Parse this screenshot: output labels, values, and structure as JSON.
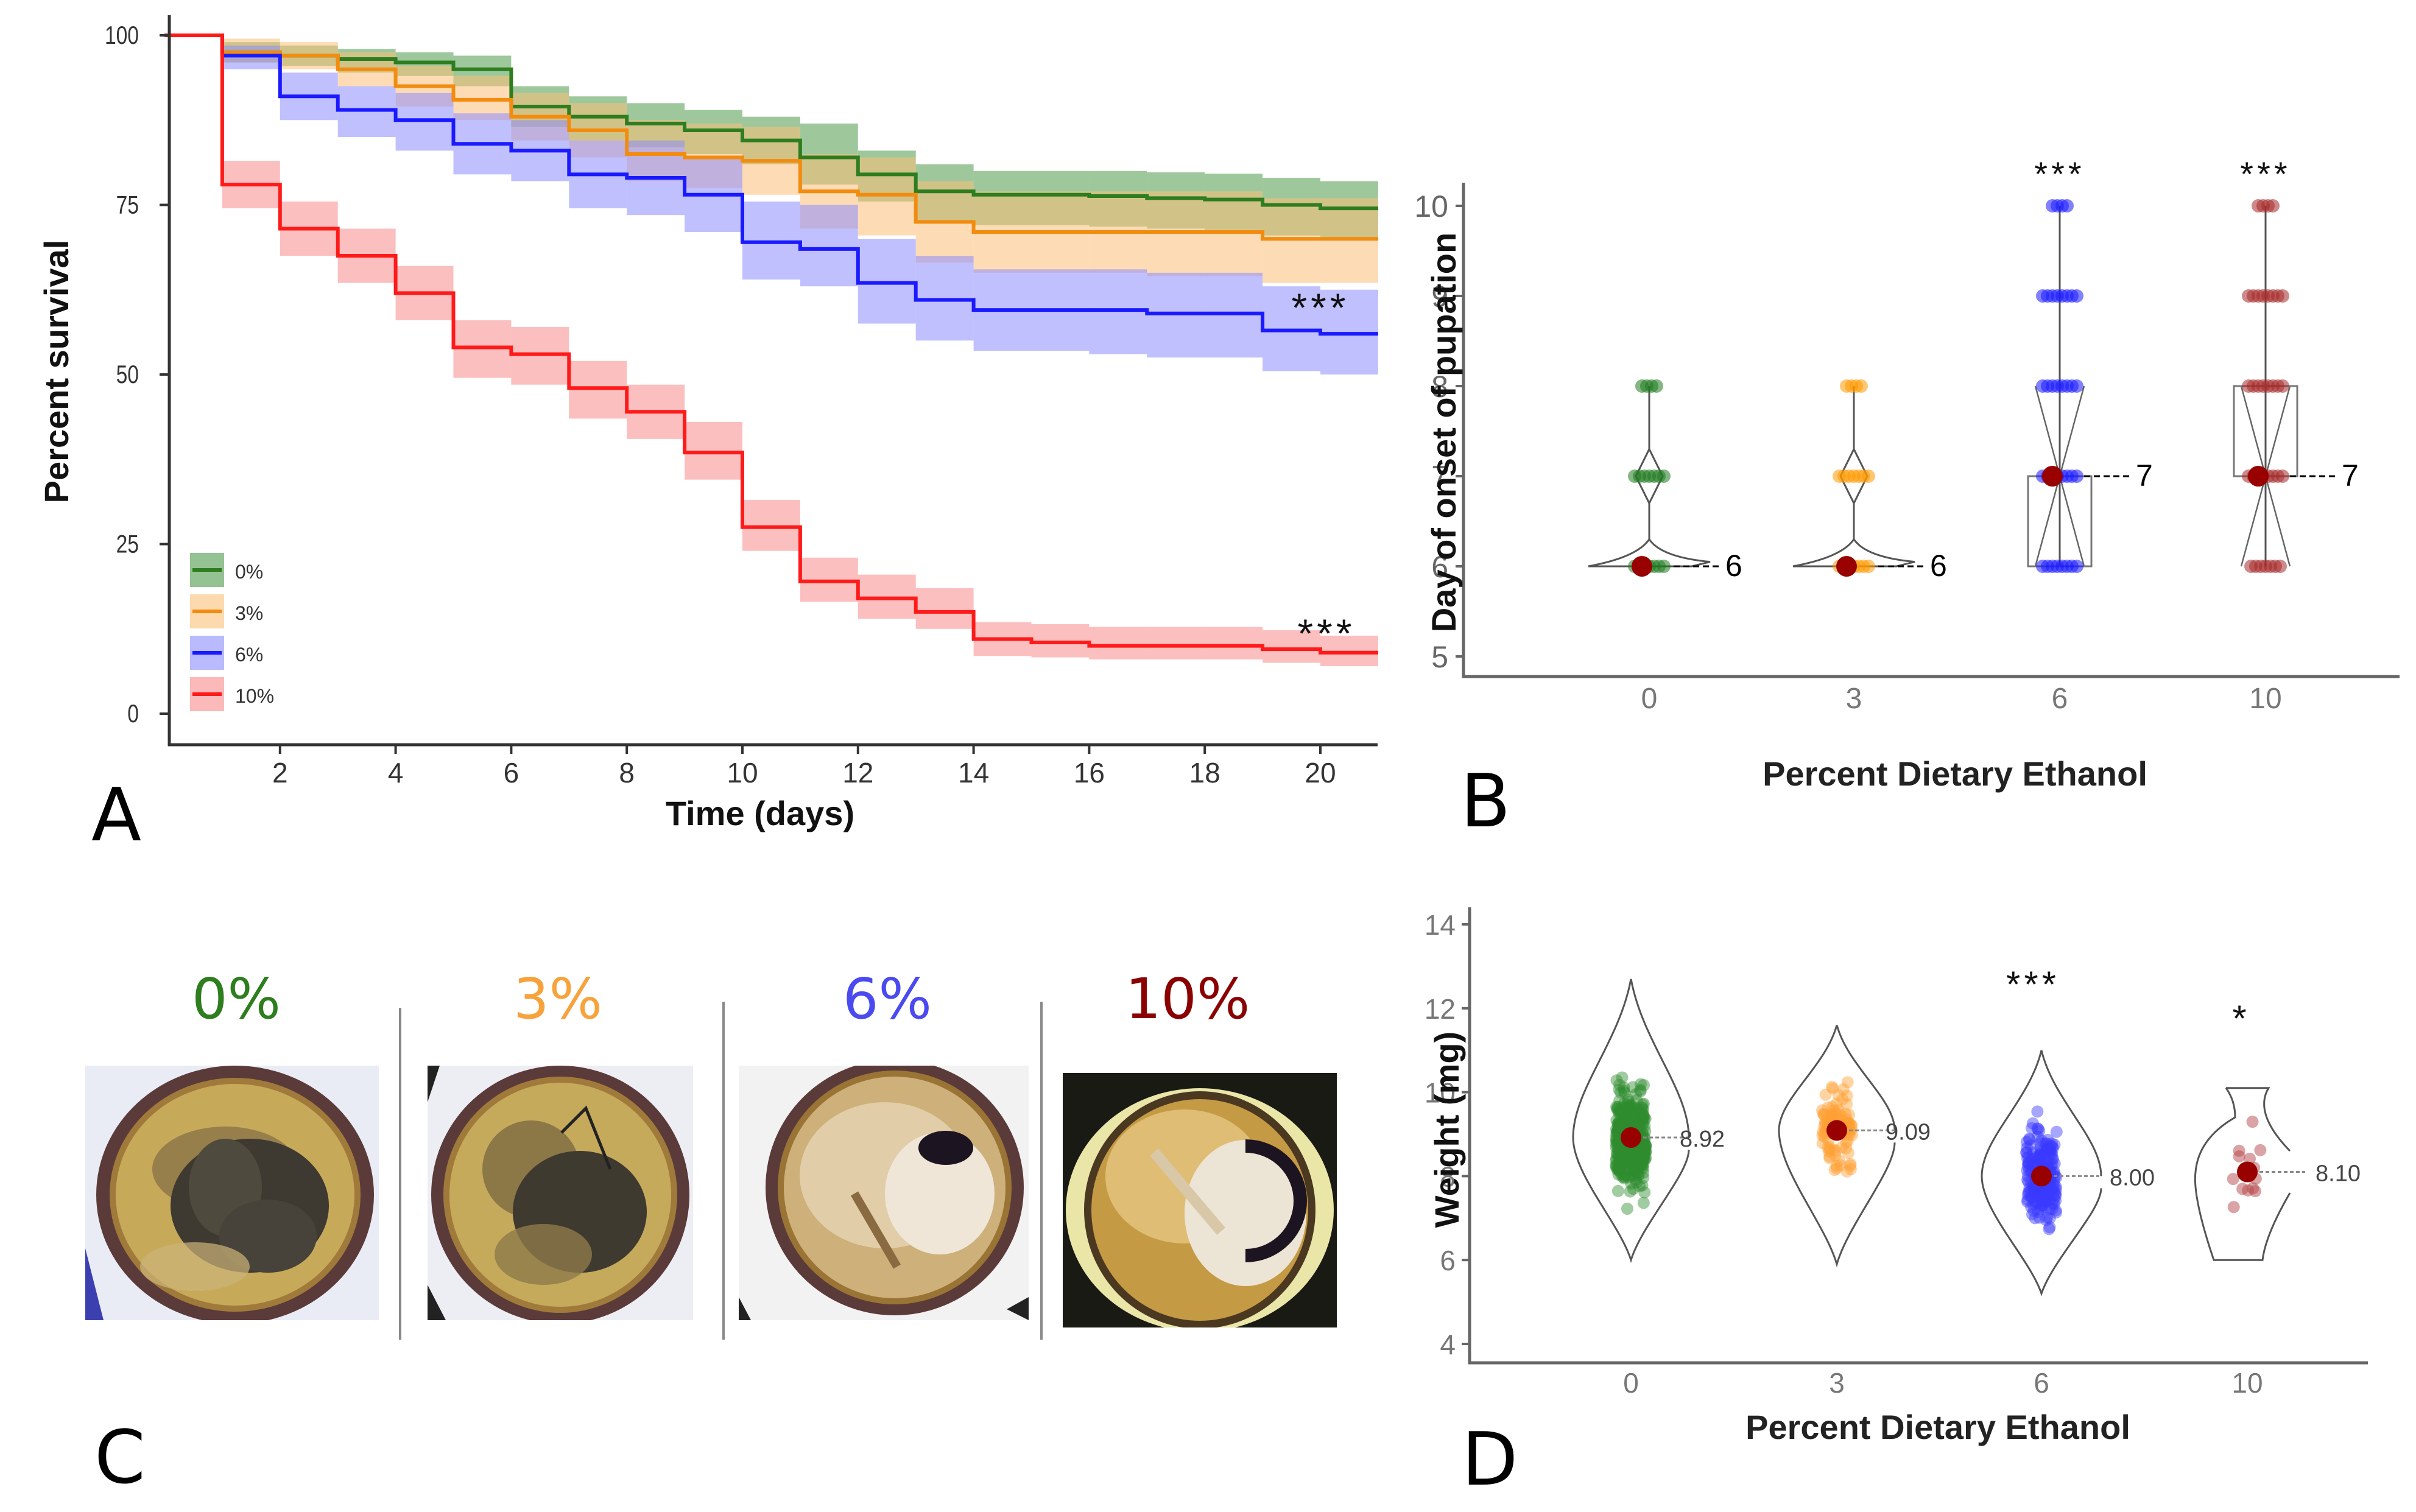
{
  "figure": {
    "panel_letters": [
      "A",
      "B",
      "C",
      "D"
    ]
  },
  "chart_data": [
    {
      "id": "A",
      "type": "line",
      "subtype": "kaplan-meier-step",
      "title": "",
      "xlabel": "Time (days)",
      "ylabel": "Percent survival",
      "xlim": [
        0,
        21
      ],
      "ylim": [
        0,
        100
      ],
      "xticks": [
        2,
        4,
        6,
        8,
        10,
        12,
        14,
        16,
        18,
        20
      ],
      "yticks": [
        0,
        25,
        50,
        75,
        100
      ],
      "legend_position": "bottom-left",
      "series": [
        {
          "name": "0%",
          "color": "#2e7d1f",
          "band_color": "#4f9a4a",
          "x": [
            0,
            1,
            2,
            3,
            4,
            5,
            6,
            7,
            8,
            9,
            10,
            11,
            12,
            13,
            14,
            15,
            16,
            17,
            18,
            19,
            20
          ],
          "y": [
            100,
            97.5,
            97,
            96.5,
            96,
            95,
            89.5,
            88,
            87,
            86,
            84.5,
            82,
            79.5,
            77,
            76.5,
            76.5,
            76.3,
            76,
            75.8,
            75,
            74.5
          ],
          "lower": [
            100,
            96,
            95.5,
            94.5,
            94,
            92.5,
            86.5,
            84.5,
            83.5,
            82.5,
            81,
            78,
            75.5,
            72.5,
            72,
            72,
            71.8,
            71.5,
            71.3,
            70.5,
            70
          ],
          "upper": [
            100,
            99,
            98.5,
            98,
            97.5,
            97,
            92.5,
            91,
            90,
            89,
            88,
            87,
            83,
            81,
            80,
            80,
            80,
            79.8,
            79.6,
            79,
            78.5
          ]
        },
        {
          "name": "3%",
          "color": "#f28c0f",
          "band_color": "#fbbf78",
          "x": [
            0,
            1,
            2,
            3,
            4,
            5,
            6,
            7,
            8,
            9,
            10,
            11,
            12,
            13,
            14,
            15,
            16,
            17,
            18,
            19,
            20
          ],
          "y": [
            100,
            97.5,
            97,
            95,
            92.5,
            90.5,
            88,
            86,
            82.5,
            82,
            81.5,
            77,
            76.5,
            72.5,
            71,
            71,
            71,
            71,
            71,
            70,
            70
          ],
          "lower": [
            100,
            96,
            95,
            92.5,
            89.5,
            87.5,
            84.5,
            82,
            78.5,
            77.5,
            76.5,
            71.5,
            70.5,
            66.5,
            65,
            65,
            65,
            64.5,
            64.5,
            63.5,
            63.5
          ],
          "upper": [
            100,
            99.5,
            99,
            97.5,
            95.5,
            94,
            91.5,
            90,
            87.5,
            87,
            86.5,
            82.5,
            82,
            78.5,
            77,
            77,
            77,
            77,
            77,
            76,
            76
          ]
        },
        {
          "name": "6%",
          "color": "#1a1aff",
          "band_color": "#8c8cff",
          "x": [
            0,
            1,
            2,
            3,
            4,
            5,
            6,
            7,
            8,
            9,
            10,
            11,
            12,
            13,
            14,
            15,
            16,
            17,
            18,
            19,
            20
          ],
          "y": [
            100,
            97,
            91,
            89,
            87.5,
            84,
            83,
            79.5,
            79,
            76.5,
            69.5,
            68.5,
            63.5,
            61,
            59.5,
            59.5,
            59.5,
            59,
            59,
            56.5,
            56
          ],
          "lower": [
            100,
            95,
            87.5,
            85,
            83,
            79.5,
            78.5,
            74.5,
            73.5,
            71,
            64,
            63,
            57.5,
            55,
            53.5,
            53.5,
            53,
            52.5,
            52.5,
            50.5,
            50
          ],
          "upper": [
            100,
            98.5,
            94.5,
            92.5,
            91.5,
            88.5,
            87.5,
            84.5,
            84.5,
            82,
            75.5,
            75,
            70,
            67.5,
            65.5,
            65.5,
            65.5,
            65,
            65,
            63,
            62.5
          ]
        },
        {
          "name": "10%",
          "color": "#ff1a1a",
          "band_color": "#f88a8a",
          "x": [
            0,
            1,
            2,
            3,
            4,
            5,
            6,
            7,
            8,
            9,
            10,
            11,
            12,
            13,
            14,
            15,
            16,
            17,
            18,
            19,
            20
          ],
          "y": [
            100,
            78,
            71.5,
            67.5,
            62,
            54,
            53,
            48,
            44.5,
            38.5,
            27.5,
            19.5,
            17,
            15,
            11,
            10.5,
            10,
            10,
            10,
            9.5,
            9
          ],
          "lower": [
            100,
            74.5,
            67.5,
            63.5,
            58,
            49.5,
            48.5,
            43.5,
            40.5,
            34.5,
            24,
            16.5,
            14,
            12.5,
            8.5,
            8.3,
            8,
            8,
            8,
            7.5,
            7
          ],
          "upper": [
            100,
            81.5,
            75.5,
            71.5,
            66,
            58,
            57,
            52,
            48.5,
            43,
            31.5,
            23,
            20.5,
            18.5,
            13.5,
            13.2,
            12.8,
            12.8,
            12.8,
            12.3,
            11.5
          ]
        }
      ],
      "annotations": [
        {
          "text": "***",
          "series": "6%",
          "x": 20,
          "y": 61
        },
        {
          "text": "***",
          "series": "10%",
          "x": 20,
          "y": 12
        }
      ]
    },
    {
      "id": "B",
      "type": "scatter",
      "subtype": "violin-box-jitter",
      "xlabel": "Percent Dietary Ethanol",
      "ylabel": "Day of onset of pupation",
      "categories": [
        "0",
        "3",
        "6",
        "10"
      ],
      "ylim": [
        5,
        10
      ],
      "yticks": [
        5,
        6,
        7,
        8,
        9,
        10
      ],
      "groups": [
        {
          "category": "0",
          "color": "#1f7a1f",
          "observed_days": [
            6,
            7,
            8
          ],
          "median": 6,
          "median_label": "6",
          "q1": 6,
          "q3": 6,
          "significance": ""
        },
        {
          "category": "3",
          "color": "#ff9900",
          "observed_days": [
            6,
            7,
            8
          ],
          "median": 6,
          "median_label": "6",
          "q1": 6,
          "q3": 6,
          "significance": ""
        },
        {
          "category": "6",
          "color": "#1a1aff",
          "observed_days": [
            6,
            7,
            8,
            9,
            10
          ],
          "median": 7,
          "median_label": "7",
          "q1": 6,
          "q3": 7,
          "significance": "***"
        },
        {
          "category": "10",
          "color": "#a52a2a",
          "observed_days": [
            6,
            7,
            8,
            9,
            10
          ],
          "median": 7,
          "median_label": "7",
          "q1": 7,
          "q3": 8,
          "significance": "***"
        }
      ],
      "median_marker_color": "#990000"
    },
    {
      "id": "D",
      "type": "scatter",
      "subtype": "violin-jitter",
      "xlabel": "Percent Dietary Ethanol",
      "ylabel": "Weight (mg)",
      "categories": [
        "0",
        "3",
        "6",
        "10"
      ],
      "ylim": [
        4,
        14
      ],
      "yticks": [
        4,
        6,
        8,
        10,
        12,
        14
      ],
      "groups": [
        {
          "category": "0",
          "color": "#2e8b2e",
          "center": 8.92,
          "center_label": "8.92",
          "min": 6.0,
          "max": 12.7,
          "n_points_approx": 400,
          "significance": ""
        },
        {
          "category": "3",
          "color": "#ffa033",
          "center": 9.09,
          "center_label": "9.09",
          "min": 5.9,
          "max": 11.6,
          "n_points_approx": 90,
          "significance": ""
        },
        {
          "category": "6",
          "color": "#3a3aff",
          "center": 8.0,
          "center_label": "8.00",
          "min": 5.2,
          "max": 11.0,
          "n_points_approx": 200,
          "significance": "***"
        },
        {
          "category": "10",
          "color": "#b5474b",
          "center": 8.1,
          "center_label": "8.10",
          "min": 6.0,
          "max": 10.1,
          "n_points_approx": 16,
          "significance": "*"
        }
      ],
      "center_marker_color": "#990000"
    }
  ],
  "photos": {
    "items": [
      {
        "label": "0%",
        "color": "#2e7d1f",
        "description": "adult bee in cell"
      },
      {
        "label": "3%",
        "color": "#f7a23b",
        "description": "adult bee in cell"
      },
      {
        "label": "6%",
        "color": "#4a4af0",
        "description": "pupa in cell"
      },
      {
        "label": "10%",
        "color": "#8b0000",
        "description": "pupa in cell"
      }
    ]
  }
}
